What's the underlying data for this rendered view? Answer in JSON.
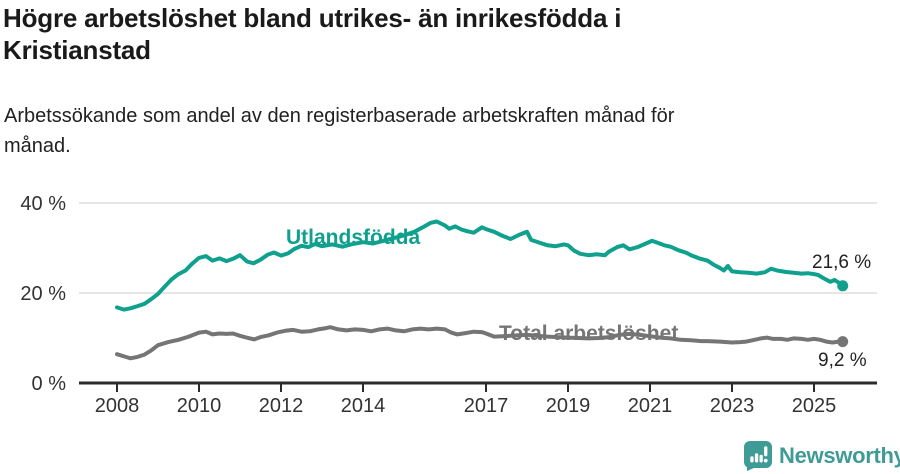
{
  "header": {
    "title_line1": "Högre arbetslöshet bland utrikes- än inrikesfödda i",
    "title_line2": "Kristianstad",
    "subtitle_line1": "Arbetssökande som andel av den registerbaserade arbetskraften månad för",
    "subtitle_line2": "månad."
  },
  "chart_data": {
    "type": "line",
    "title": "Högre arbetslöshet bland utrikes- än inrikesfödda i Kristianstad",
    "subtitle": "Arbetssökande som andel av den registerbaserade arbetskraften månad för månad.",
    "ylabel": "",
    "xlabel": "",
    "ylim": [
      0,
      43
    ],
    "xlim": [
      2007.1,
      2026.6
    ],
    "grid": "horizontal",
    "legend_position": "inline-labels",
    "x_axis": {
      "ticks": [
        2008,
        2010,
        2012,
        2014,
        2017,
        2019,
        2021,
        2023,
        2025
      ]
    },
    "y_axis": {
      "ticks": [
        {
          "value": 0,
          "label": "0 %"
        },
        {
          "value": 20,
          "label": "20 %"
        },
        {
          "value": 40,
          "label": "40 %"
        }
      ]
    },
    "series": [
      {
        "name": "Utlandsfödda",
        "color": "#10A08E",
        "end_label": "21,6 %",
        "end_value": 21.6,
        "x": [
          2008.0,
          2008.17,
          2008.33,
          2008.5,
          2008.67,
          2008.83,
          2009.0,
          2009.17,
          2009.33,
          2009.5,
          2009.67,
          2009.83,
          2010.0,
          2010.17,
          2010.33,
          2010.5,
          2010.67,
          2010.83,
          2011.0,
          2011.17,
          2011.33,
          2011.5,
          2011.67,
          2011.83,
          2012.0,
          2012.17,
          2012.33,
          2012.5,
          2012.67,
          2012.83,
          2013.0,
          2013.25,
          2013.5,
          2013.75,
          2014.0,
          2014.25,
          2014.5,
          2014.75,
          2015.0,
          2015.25,
          2015.5,
          2015.65,
          2015.8,
          2016.0,
          2016.1,
          2016.25,
          2016.4,
          2016.55,
          2016.7,
          2016.9,
          2017.0,
          2017.2,
          2017.4,
          2017.6,
          2017.8,
          2018.0,
          2018.1,
          2018.3,
          2018.5,
          2018.7,
          2018.9,
          2019.0,
          2019.15,
          2019.3,
          2019.5,
          2019.7,
          2019.9,
          2020.0,
          2020.2,
          2020.35,
          2020.5,
          2020.7,
          2020.9,
          2021.05,
          2021.2,
          2021.35,
          2021.5,
          2021.7,
          2021.9,
          2022.0,
          2022.2,
          2022.4,
          2022.55,
          2022.7,
          2022.8,
          2022.9,
          2023.0,
          2023.2,
          2023.4,
          2023.6,
          2023.8,
          2023.95,
          2024.1,
          2024.3,
          2024.5,
          2024.7,
          2024.85,
          2025.0,
          2025.1,
          2025.25,
          2025.4,
          2025.5,
          2025.6,
          2025.7
        ],
        "y": [
          16.8,
          16.3,
          16.6,
          17.1,
          17.6,
          18.6,
          19.8,
          21.5,
          23.0,
          24.2,
          25.0,
          26.5,
          27.8,
          28.2,
          27.2,
          27.7,
          27.1,
          27.6,
          28.4,
          27.0,
          26.6,
          27.4,
          28.5,
          29.0,
          28.3,
          28.8,
          29.8,
          30.5,
          30.2,
          30.9,
          30.4,
          30.8,
          30.3,
          30.9,
          31.3,
          31.0,
          31.6,
          32.2,
          32.8,
          33.6,
          34.8,
          35.6,
          35.9,
          35.0,
          34.3,
          34.8,
          34.1,
          33.7,
          33.4,
          34.6,
          34.2,
          33.6,
          32.7,
          32.0,
          32.9,
          33.6,
          31.8,
          31.2,
          30.6,
          30.4,
          30.8,
          30.6,
          29.4,
          28.7,
          28.4,
          28.6,
          28.4,
          29.2,
          30.2,
          30.6,
          29.7,
          30.2,
          31.0,
          31.6,
          31.1,
          30.6,
          30.3,
          29.5,
          28.9,
          28.4,
          27.7,
          27.2,
          26.3,
          25.6,
          25.0,
          26.0,
          24.8,
          24.6,
          24.5,
          24.3,
          24.6,
          25.4,
          25.0,
          24.7,
          24.5,
          24.3,
          24.4,
          24.2,
          24.0,
          23.2,
          22.5,
          22.9,
          22.3,
          21.6
        ]
      },
      {
        "name": "Total arbetslöshet",
        "color": "#757575",
        "end_label": "9,2 %",
        "end_value": 9.2,
        "x": [
          2008.0,
          2008.17,
          2008.33,
          2008.5,
          2008.67,
          2008.83,
          2009.0,
          2009.25,
          2009.5,
          2009.75,
          2010.0,
          2010.17,
          2010.33,
          2010.5,
          2010.67,
          2010.83,
          2011.0,
          2011.2,
          2011.35,
          2011.5,
          2011.7,
          2011.9,
          2012.1,
          2012.3,
          2012.5,
          2012.7,
          2012.9,
          2013.1,
          2013.2,
          2013.4,
          2013.6,
          2013.8,
          2014.0,
          2014.2,
          2014.4,
          2014.6,
          2014.8,
          2015.0,
          2015.2,
          2015.4,
          2015.6,
          2015.8,
          2016.0,
          2016.15,
          2016.3,
          2016.5,
          2016.7,
          2016.9,
          2017.0,
          2017.2,
          2017.4,
          2017.6,
          2017.8,
          2018.0,
          2018.25,
          2018.5,
          2018.75,
          2019.0,
          2019.25,
          2019.5,
          2019.75,
          2020.0,
          2020.25,
          2020.5,
          2020.75,
          2021.0,
          2021.25,
          2021.5,
          2021.75,
          2022.0,
          2022.25,
          2022.4,
          2022.7,
          2023.0,
          2023.2,
          2023.35,
          2023.55,
          2023.7,
          2023.85,
          2024.0,
          2024.2,
          2024.35,
          2024.5,
          2024.7,
          2024.85,
          2025.0,
          2025.15,
          2025.3,
          2025.45,
          2025.6,
          2025.7
        ],
        "y": [
          6.4,
          5.9,
          5.5,
          5.8,
          6.3,
          7.2,
          8.4,
          9.1,
          9.6,
          10.3,
          11.2,
          11.4,
          10.8,
          11.0,
          10.9,
          11.0,
          10.5,
          10.0,
          9.7,
          10.2,
          10.6,
          11.2,
          11.6,
          11.8,
          11.4,
          11.5,
          11.9,
          12.2,
          12.4,
          11.9,
          11.7,
          11.9,
          11.8,
          11.5,
          11.9,
          12.1,
          11.7,
          11.5,
          11.9,
          12.1,
          11.9,
          12.1,
          11.9,
          11.2,
          10.8,
          11.1,
          11.4,
          11.3,
          11.0,
          10.3,
          10.4,
          10.5,
          10.6,
          10.7,
          10.5,
          10.3,
          10.2,
          10.1,
          10.0,
          9.9,
          10.0,
          10.2,
          10.7,
          10.9,
          10.7,
          10.4,
          10.1,
          9.9,
          9.6,
          9.5,
          9.3,
          9.3,
          9.2,
          9.0,
          9.1,
          9.2,
          9.6,
          9.9,
          10.1,
          9.8,
          9.8,
          9.6,
          9.9,
          9.8,
          9.6,
          9.8,
          9.6,
          9.2,
          9.0,
          9.2,
          9.2
        ]
      }
    ],
    "colors": {
      "accent_teal": "#10A08E",
      "gray": "#757575",
      "grid": "#dedede",
      "axis": "#2b2b2b",
      "brand_teal": "#3F9B95"
    }
  },
  "footer": {
    "brand": "Newsworthy"
  }
}
